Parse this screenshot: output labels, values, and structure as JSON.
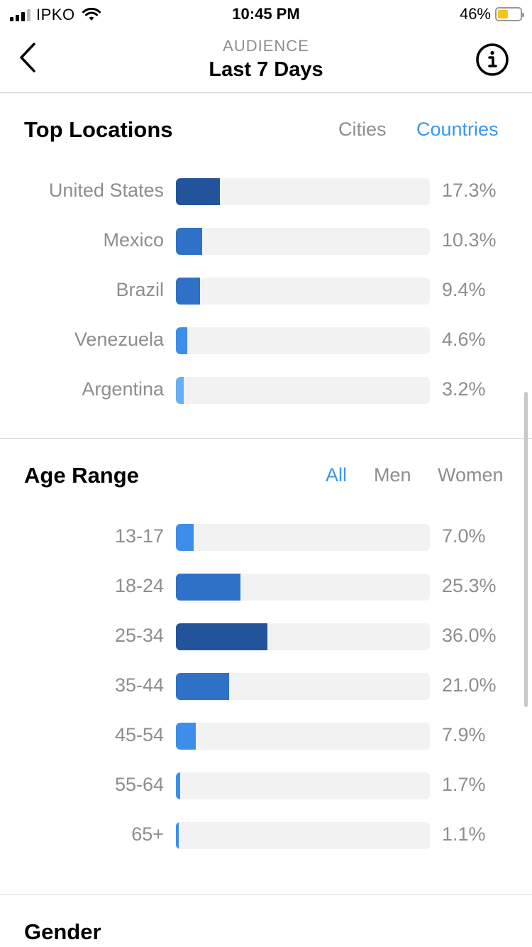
{
  "status_bar": {
    "carrier": "IPKO",
    "time": "10:45 PM",
    "battery_percent": "46%",
    "battery_level": 0.46,
    "battery_color": "#f5c518"
  },
  "nav": {
    "subtitle": "AUDIENCE",
    "title": "Last 7 Days",
    "back_icon": "chevron-left-icon",
    "info_icon": "info-icon"
  },
  "top_locations": {
    "title": "Top Locations",
    "tabs": [
      {
        "label": "Cities",
        "active": false
      },
      {
        "label": "Countries",
        "active": true
      }
    ],
    "rows": [
      {
        "label": "United States",
        "percent": 17.3,
        "value": "17.3%",
        "color": "#22549c"
      },
      {
        "label": "Mexico",
        "percent": 10.3,
        "value": "10.3%",
        "color": "#2f71c7"
      },
      {
        "label": "Brazil",
        "percent": 9.4,
        "value": "9.4%",
        "color": "#2f71c7"
      },
      {
        "label": "Venezuela",
        "percent": 4.6,
        "value": "4.6%",
        "color": "#3d8eea"
      },
      {
        "label": "Argentina",
        "percent": 3.2,
        "value": "3.2%",
        "color": "#6aaef5"
      }
    ]
  },
  "age_range": {
    "title": "Age Range",
    "tabs": [
      {
        "label": "All",
        "active": true
      },
      {
        "label": "Men",
        "active": false
      },
      {
        "label": "Women",
        "active": false
      }
    ],
    "rows": [
      {
        "label": "13-17",
        "percent": 7.0,
        "value": "7.0%",
        "color": "#3d8eea"
      },
      {
        "label": "18-24",
        "percent": 25.3,
        "value": "25.3%",
        "color": "#2f71c7"
      },
      {
        "label": "25-34",
        "percent": 36.0,
        "value": "36.0%",
        "color": "#22549c"
      },
      {
        "label": "35-44",
        "percent": 21.0,
        "value": "21.0%",
        "color": "#2f71c7"
      },
      {
        "label": "45-54",
        "percent": 7.9,
        "value": "7.9%",
        "color": "#3d8eea"
      },
      {
        "label": "55-64",
        "percent": 1.7,
        "value": "1.7%",
        "color": "#3d8eea"
      },
      {
        "label": "65+",
        "percent": 1.1,
        "value": "1.1%",
        "color": "#3d8eea"
      }
    ]
  },
  "gender": {
    "title": "Gender"
  }
}
